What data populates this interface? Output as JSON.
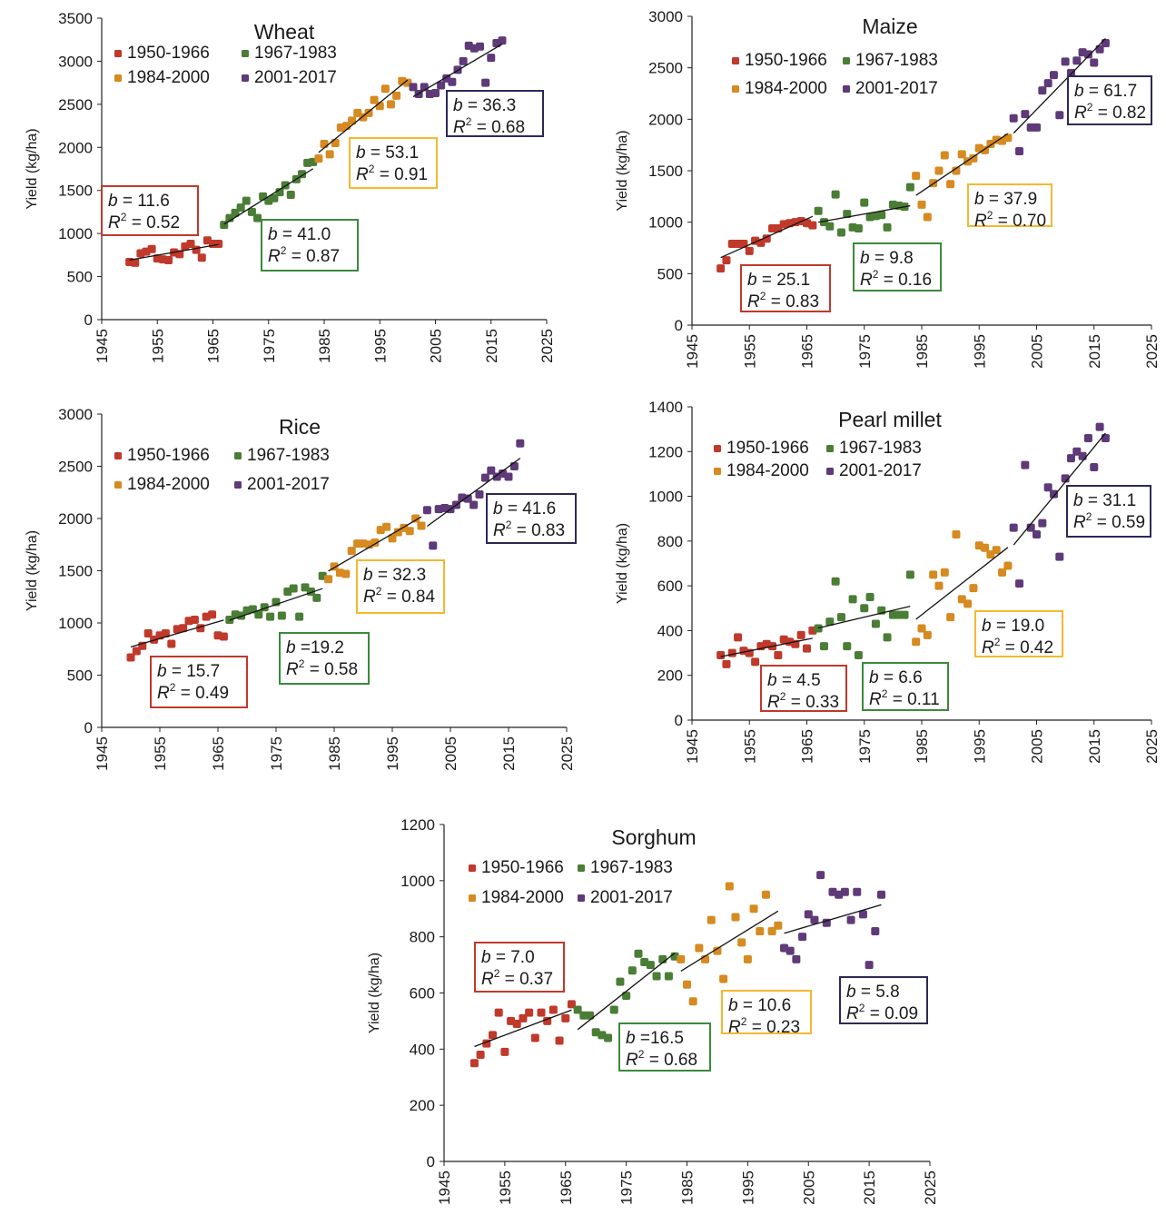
{
  "shared": {
    "ylabel": "Yield (kg/ha)",
    "period_colors": {
      "1950-1966": "#c0392b",
      "1967-1983": "#4a7d35",
      "1984-2000": "#d68a1f",
      "2001-2017": "#5e3a78"
    },
    "box_colors": {
      "1950-1966": "#c0392b",
      "1967-1983": "#3a8a3a",
      "1984-2000": "#f5b830",
      "2001-2017": "#2c2a55"
    },
    "legend_labels": [
      "1950-1966",
      "1967-1983",
      "1984-2000",
      "2001-2017"
    ],
    "xticks": [
      "1945",
      "1955",
      "1965",
      "1975",
      "1985",
      "1995",
      "2005",
      "2015",
      "2025"
    ]
  },
  "chart_data": [
    {
      "type": "scatter",
      "title": "Wheat",
      "ylabel": "Yield (kg/ha)",
      "xlim": [
        1945,
        2025
      ],
      "ylim": [
        0,
        3500
      ],
      "yticks": [
        "0",
        "500",
        "1000",
        "1500",
        "2000",
        "2500",
        "3000",
        "3500"
      ],
      "series": [
        {
          "name": "1950-1966",
          "x": [
            1950,
            1951,
            1952,
            1953,
            1954,
            1955,
            1956,
            1957,
            1958,
            1959,
            1960,
            1961,
            1962,
            1963,
            1964,
            1965,
            1966
          ],
          "y": [
            670,
            660,
            770,
            790,
            820,
            710,
            700,
            690,
            780,
            760,
            850,
            880,
            810,
            720,
            920,
            880,
            880
          ]
        },
        {
          "name": "1967-1983",
          "x": [
            1967,
            1968,
            1969,
            1970,
            1971,
            1972,
            1973,
            1974,
            1975,
            1976,
            1977,
            1978,
            1979,
            1980,
            1981,
            1982,
            1983
          ],
          "y": [
            1100,
            1180,
            1240,
            1300,
            1380,
            1250,
            1180,
            1430,
            1380,
            1410,
            1480,
            1560,
            1450,
            1630,
            1690,
            1820,
            1830
          ]
        },
        {
          "name": "1984-2000",
          "x": [
            1984,
            1985,
            1986,
            1987,
            1988,
            1989,
            1990,
            1991,
            1992,
            1993,
            1994,
            1995,
            1996,
            1997,
            1998,
            1999,
            2000
          ],
          "y": [
            1870,
            2040,
            1920,
            2050,
            2230,
            2250,
            2310,
            2400,
            2350,
            2400,
            2550,
            2480,
            2680,
            2500,
            2600,
            2770,
            2750
          ]
        },
        {
          "name": "2001-2017",
          "x": [
            2001,
            2002,
            2003,
            2004,
            2005,
            2006,
            2007,
            2008,
            2009,
            2010,
            2011,
            2012,
            2013,
            2014,
            2015,
            2016,
            2017
          ],
          "y": [
            2700,
            2620,
            2700,
            2620,
            2630,
            2720,
            2800,
            2760,
            2900,
            3000,
            3180,
            3150,
            3170,
            2750,
            3040,
            3210,
            3240
          ]
        }
      ],
      "trendlines": [
        {
          "name": "1950-1966",
          "b": "11.6",
          "r2": "0.52"
        },
        {
          "name": "1967-1983",
          "b": "41.0",
          "r2": "0.87"
        },
        {
          "name": "1984-2000",
          "b": "53.1",
          "r2": "0.91"
        },
        {
          "name": "2001-2017",
          "b": "36.3",
          "r2": "0.68"
        }
      ]
    },
    {
      "type": "scatter",
      "title": "Maize",
      "ylabel": "Yield (kg/ha)",
      "xlim": [
        1945,
        2025
      ],
      "ylim": [
        0,
        3000
      ],
      "yticks": [
        "0",
        "500",
        "1000",
        "1500",
        "2000",
        "2500",
        "3000"
      ],
      "series": [
        {
          "name": "1950-1966",
          "x": [
            1950,
            1951,
            1952,
            1953,
            1954,
            1955,
            1956,
            1957,
            1958,
            1959,
            1960,
            1961,
            1962,
            1963,
            1964,
            1965,
            1966
          ],
          "y": [
            550,
            630,
            790,
            790,
            790,
            720,
            820,
            800,
            840,
            940,
            940,
            980,
            990,
            1000,
            1010,
            990,
            970
          ]
        },
        {
          "name": "1967-1983",
          "x": [
            1967,
            1968,
            1969,
            1970,
            1971,
            1972,
            1973,
            1974,
            1975,
            1976,
            1977,
            1978,
            1979,
            1980,
            1981,
            1982,
            1983
          ],
          "y": [
            1110,
            1000,
            960,
            1270,
            900,
            1080,
            950,
            940,
            1190,
            1050,
            1060,
            1070,
            950,
            1170,
            1160,
            1150,
            1340
          ]
        },
        {
          "name": "1984-2000",
          "x": [
            1984,
            1985,
            1986,
            1987,
            1988,
            1989,
            1990,
            1991,
            1992,
            1993,
            1994,
            1995,
            1996,
            1997,
            1998,
            1999,
            2000
          ],
          "y": [
            1450,
            1170,
            1050,
            1380,
            1500,
            1650,
            1370,
            1500,
            1660,
            1590,
            1620,
            1720,
            1700,
            1760,
            1800,
            1790,
            1820
          ]
        },
        {
          "name": "2001-2017",
          "x": [
            2001,
            2002,
            2003,
            2004,
            2005,
            2006,
            2007,
            2008,
            2009,
            2010,
            2011,
            2012,
            2013,
            2014,
            2015,
            2016,
            2017
          ],
          "y": [
            2010,
            1690,
            2050,
            1920,
            1920,
            2280,
            2350,
            2430,
            2040,
            2560,
            2450,
            2570,
            2650,
            2630,
            2550,
            2680,
            2740
          ]
        }
      ],
      "trendlines": [
        {
          "name": "1950-1966",
          "b": "25.1",
          "r2": "0.83"
        },
        {
          "name": "1967-1983",
          "b": "9.8",
          "r2": "0.16"
        },
        {
          "name": "1984-2000",
          "b": "37.9",
          "r2": "0.70"
        },
        {
          "name": "2001-2017",
          "b": "61.7",
          "r2": "0.82"
        }
      ]
    },
    {
      "type": "scatter",
      "title": "Rice",
      "ylabel": "Yield (kg/ha)",
      "xlim": [
        1945,
        2025
      ],
      "ylim": [
        0,
        3000
      ],
      "yticks": [
        "0",
        "500",
        "1000",
        "1500",
        "2000",
        "2500",
        "3000"
      ],
      "series": [
        {
          "name": "1950-1966",
          "x": [
            1950,
            1951,
            1952,
            1953,
            1954,
            1955,
            1956,
            1957,
            1958,
            1959,
            1960,
            1961,
            1962,
            1963,
            1964,
            1965,
            1966
          ],
          "y": [
            670,
            730,
            780,
            900,
            840,
            880,
            900,
            800,
            940,
            950,
            1020,
            1030,
            950,
            1060,
            1080,
            880,
            870
          ]
        },
        {
          "name": "1967-1983",
          "x": [
            1967,
            1968,
            1969,
            1970,
            1971,
            1972,
            1973,
            1974,
            1975,
            1976,
            1977,
            1978,
            1979,
            1980,
            1981,
            1982,
            1983
          ],
          "y": [
            1030,
            1080,
            1070,
            1120,
            1130,
            1080,
            1150,
            1060,
            1200,
            1070,
            1300,
            1330,
            1060,
            1340,
            1300,
            1240,
            1450
          ]
        },
        {
          "name": "1984-2000",
          "x": [
            1984,
            1985,
            1986,
            1987,
            1988,
            1989,
            1990,
            1991,
            1992,
            1993,
            1994,
            1995,
            1996,
            1997,
            1998,
            1999,
            2000
          ],
          "y": [
            1420,
            1540,
            1480,
            1470,
            1690,
            1760,
            1760,
            1750,
            1770,
            1890,
            1920,
            1810,
            1870,
            1910,
            1880,
            2000,
            1930
          ]
        },
        {
          "name": "2001-2017",
          "x": [
            2001,
            2002,
            2003,
            2004,
            2005,
            2006,
            2007,
            2008,
            2009,
            2010,
            2011,
            2012,
            2013,
            2014,
            2015,
            2016,
            2017
          ],
          "y": [
            2080,
            1740,
            2090,
            2100,
            2090,
            2130,
            2200,
            2190,
            2130,
            2230,
            2390,
            2460,
            2400,
            2430,
            2400,
            2500,
            2720
          ]
        }
      ],
      "trendlines": [
        {
          "name": "1950-1966",
          "b": "15.7",
          "r2": "0.49"
        },
        {
          "name": "1967-1983",
          "b": "=19.2",
          "r2": "0.58"
        },
        {
          "name": "1984-2000",
          "b": "32.3",
          "r2": "0.84"
        },
        {
          "name": "2001-2017",
          "b": "41.6",
          "r2": "0.83"
        }
      ]
    },
    {
      "type": "scatter",
      "title": "Pearl millet",
      "ylabel": "Yield (kg/ha)",
      "xlim": [
        1945,
        2025
      ],
      "ylim": [
        0,
        1400
      ],
      "yticks": [
        "0",
        "200",
        "400",
        "600",
        "800",
        "1000",
        "1200",
        "1400"
      ],
      "series": [
        {
          "name": "1950-1966",
          "x": [
            1950,
            1951,
            1952,
            1953,
            1954,
            1955,
            1956,
            1957,
            1958,
            1959,
            1960,
            1961,
            1962,
            1963,
            1964,
            1965,
            1966
          ],
          "y": [
            290,
            250,
            300,
            370,
            310,
            300,
            260,
            330,
            340,
            330,
            290,
            360,
            350,
            340,
            380,
            320,
            400
          ]
        },
        {
          "name": "1967-1983",
          "x": [
            1967,
            1968,
            1969,
            1970,
            1971,
            1972,
            1973,
            1974,
            1975,
            1976,
            1977,
            1978,
            1979,
            1980,
            1981,
            1982,
            1983
          ],
          "y": [
            410,
            330,
            440,
            620,
            460,
            330,
            540,
            290,
            500,
            550,
            430,
            490,
            370,
            470,
            470,
            470,
            650
          ]
        },
        {
          "name": "1984-2000",
          "x": [
            1984,
            1985,
            1986,
            1987,
            1988,
            1989,
            1990,
            1991,
            1992,
            1993,
            1994,
            1995,
            1996,
            1997,
            1998,
            1999,
            2000
          ],
          "y": [
            350,
            410,
            380,
            650,
            600,
            660,
            460,
            830,
            540,
            520,
            590,
            780,
            770,
            740,
            760,
            660,
            690
          ]
        },
        {
          "name": "2001-2017",
          "x": [
            2001,
            2002,
            2003,
            2004,
            2005,
            2006,
            2007,
            2008,
            2009,
            2010,
            2011,
            2012,
            2013,
            2014,
            2015,
            2016,
            2017
          ],
          "y": [
            860,
            610,
            1140,
            860,
            830,
            880,
            1040,
            1010,
            730,
            1080,
            1170,
            1200,
            1180,
            1260,
            1130,
            1310,
            1260
          ]
        }
      ],
      "trendlines": [
        {
          "name": "1950-1966",
          "b": "4.5",
          "r2": "0.33"
        },
        {
          "name": "1967-1983",
          "b": "6.6",
          "r2": "0.11"
        },
        {
          "name": "1984-2000",
          "b": "19.0",
          "r2": "0.42"
        },
        {
          "name": "2001-2017",
          "b": "31.1",
          "r2": "0.59"
        }
      ]
    },
    {
      "type": "scatter",
      "title": "Sorghum",
      "ylabel": "Yield (kg/ha)",
      "xlim": [
        1945,
        2025
      ],
      "ylim": [
        0,
        1200
      ],
      "yticks": [
        "0",
        "200",
        "400",
        "600",
        "800",
        "1000",
        "1200"
      ],
      "series": [
        {
          "name": "1950-1966",
          "x": [
            1950,
            1951,
            1952,
            1953,
            1954,
            1955,
            1956,
            1957,
            1958,
            1959,
            1960,
            1961,
            1962,
            1963,
            1964,
            1965,
            1966
          ],
          "y": [
            350,
            380,
            420,
            450,
            530,
            390,
            500,
            490,
            510,
            530,
            440,
            530,
            500,
            540,
            430,
            510,
            560
          ]
        },
        {
          "name": "1967-1983",
          "x": [
            1967,
            1968,
            1969,
            1970,
            1971,
            1972,
            1973,
            1974,
            1975,
            1976,
            1977,
            1978,
            1979,
            1980,
            1981,
            1982,
            1983
          ],
          "y": [
            540,
            520,
            520,
            460,
            450,
            440,
            540,
            640,
            590,
            680,
            740,
            710,
            700,
            660,
            720,
            660,
            730
          ]
        },
        {
          "name": "1984-2000",
          "x": [
            1984,
            1985,
            1986,
            1987,
            1988,
            1989,
            1990,
            1991,
            1992,
            1993,
            1994,
            1995,
            1996,
            1997,
            1998,
            1999,
            2000
          ],
          "y": [
            720,
            630,
            570,
            760,
            720,
            860,
            750,
            650,
            980,
            870,
            780,
            720,
            900,
            820,
            950,
            820,
            840
          ]
        },
        {
          "name": "2001-2017",
          "x": [
            2001,
            2002,
            2003,
            2004,
            2005,
            2006,
            2007,
            2008,
            2009,
            2010,
            2011,
            2012,
            2013,
            2014,
            2015,
            2016,
            2017
          ],
          "y": [
            760,
            750,
            720,
            800,
            880,
            860,
            1020,
            850,
            960,
            950,
            960,
            860,
            960,
            880,
            700,
            820,
            950
          ]
        }
      ],
      "trendlines": [
        {
          "name": "1950-1966",
          "b": "7.0",
          "r2": "0.37"
        },
        {
          "name": "1967-1983",
          "b": "=16.5",
          "r2": "0.68"
        },
        {
          "name": "1984-2000",
          "b": "10.6",
          "r2": "0.23"
        },
        {
          "name": "2001-2017",
          "b": "5.8",
          "r2": "0.09"
        }
      ]
    }
  ]
}
